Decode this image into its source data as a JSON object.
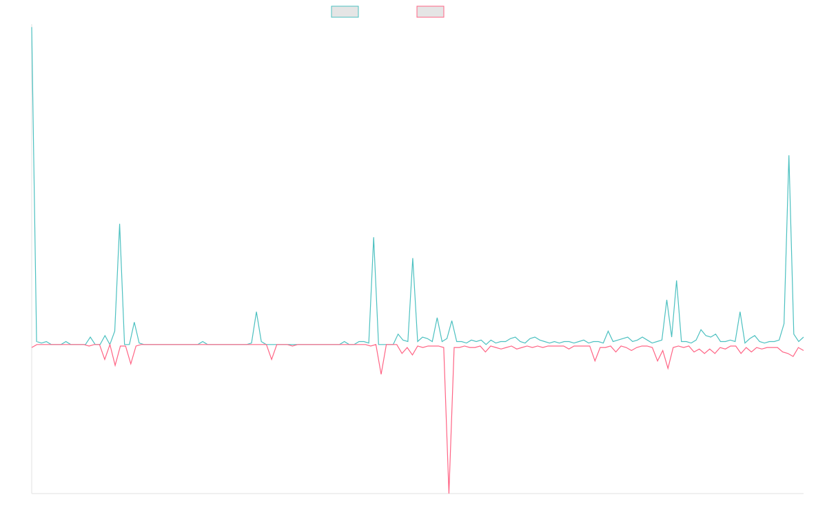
{
  "chart_data": {
    "type": "line",
    "title": "",
    "xlabel": "",
    "ylabel": "",
    "ylim": [
      -1.0,
      2.15
    ],
    "grid": false,
    "legend_placement": "top-center",
    "series": [
      {
        "name": "",
        "color": "#4bc0c0",
        "fill": "#e5e5e5",
        "values": [
          2.13,
          0.02,
          0.01,
          0.02,
          0.0,
          0.0,
          0.0,
          0.02,
          0.0,
          0.0,
          0.0,
          0.0,
          0.05,
          0.0,
          0.0,
          0.06,
          0.0,
          0.09,
          0.81,
          0.0,
          0.0,
          0.15,
          0.01,
          0.0,
          0.0,
          0.0,
          0.0,
          0.0,
          0.0,
          0.0,
          0.0,
          0.0,
          0.0,
          0.0,
          0.0,
          0.02,
          0.0,
          0.0,
          0.0,
          0.0,
          0.0,
          0.0,
          0.0,
          0.0,
          0.0,
          0.01,
          0.22,
          0.02,
          0.0,
          0.0,
          0.0,
          0.0,
          0.0,
          0.0,
          0.0,
          0.0,
          0.0,
          0.0,
          0.0,
          0.0,
          0.0,
          0.0,
          0.0,
          0.0,
          0.02,
          0.0,
          0.0,
          0.02,
          0.02,
          0.01,
          0.72,
          0.0,
          0.0,
          0.0,
          0.0,
          0.07,
          0.03,
          0.02,
          0.58,
          0.02,
          0.05,
          0.04,
          0.02,
          0.18,
          0.02,
          0.04,
          0.16,
          0.02,
          0.02,
          0.01,
          0.03,
          0.02,
          0.03,
          0.0,
          0.03,
          0.01,
          0.02,
          0.02,
          0.04,
          0.05,
          0.02,
          0.01,
          0.04,
          0.05,
          0.03,
          0.02,
          0.01,
          0.02,
          0.01,
          0.02,
          0.02,
          0.01,
          0.02,
          0.03,
          0.01,
          0.02,
          0.02,
          0.01,
          0.09,
          0.02,
          0.03,
          0.04,
          0.05,
          0.02,
          0.03,
          0.05,
          0.03,
          0.01,
          0.02,
          0.03,
          0.3,
          0.05,
          0.43,
          0.02,
          0.02,
          0.01,
          0.03,
          0.1,
          0.06,
          0.05,
          0.07,
          0.02,
          0.02,
          0.03,
          0.02,
          0.22,
          0.01,
          0.04,
          0.06,
          0.02,
          0.01,
          0.02,
          0.02,
          0.03,
          0.14,
          1.27,
          0.07,
          0.02,
          0.05
        ]
      },
      {
        "name": "",
        "color": "#ff6384",
        "fill": "#e5e5e5",
        "values": [
          -0.02,
          0.0,
          0.0,
          0.0,
          0.0,
          0.0,
          0.0,
          0.0,
          0.0,
          0.0,
          0.0,
          -0.01,
          0.0,
          0.0,
          -0.1,
          0.0,
          -0.14,
          -0.01,
          -0.01,
          -0.13,
          -0.01,
          0.0,
          0.0,
          0.0,
          0.0,
          0.0,
          0.0,
          0.0,
          0.0,
          0.0,
          0.0,
          0.0,
          0.0,
          0.0,
          0.0,
          0.0,
          0.0,
          0.0,
          0.0,
          0.0,
          0.0,
          0.0,
          0.0,
          0.0,
          0.0,
          0.0,
          -0.1,
          0.0,
          0.0,
          0.0,
          -0.01,
          0.0,
          0.0,
          0.0,
          0.0,
          0.0,
          0.0,
          0.0,
          0.0,
          0.0,
          0.0,
          0.0,
          0.0,
          0.0,
          0.0,
          -0.01,
          0.0,
          -0.2,
          0.0,
          0.0,
          0.0,
          -0.06,
          -0.02,
          -0.07,
          -0.01,
          -0.02,
          -0.01,
          -0.01,
          -0.01,
          -0.02,
          -1.0,
          -0.02,
          -0.02,
          -0.01,
          -0.02,
          -0.02,
          -0.01,
          -0.05,
          -0.01,
          -0.02,
          -0.03,
          -0.02,
          -0.01,
          -0.03,
          -0.02,
          -0.01,
          -0.02,
          -0.01,
          -0.02,
          -0.01,
          -0.01,
          -0.01,
          -0.01,
          -0.03,
          -0.01,
          -0.01,
          -0.01,
          -0.01,
          -0.11,
          -0.02,
          -0.02,
          -0.01,
          -0.05,
          -0.01,
          -0.02,
          -0.04,
          -0.02,
          -0.01,
          -0.01,
          -0.02,
          -0.11,
          -0.04,
          -0.16,
          -0.02,
          -0.01,
          -0.02,
          -0.01,
          -0.05,
          -0.03,
          -0.06,
          -0.03,
          -0.06,
          -0.02,
          -0.03,
          -0.01,
          -0.01,
          -0.06,
          -0.02,
          -0.05,
          -0.02,
          -0.03,
          -0.02,
          -0.02,
          -0.02,
          -0.05,
          -0.06,
          -0.08,
          -0.02,
          -0.04
        ]
      }
    ]
  }
}
